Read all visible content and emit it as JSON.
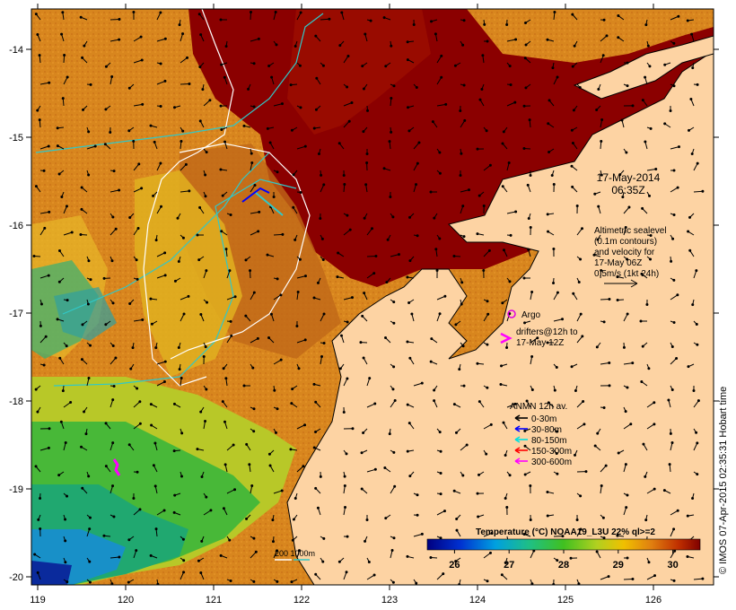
{
  "map": {
    "x_ticks": [
      "119",
      "120",
      "121",
      "122",
      "123",
      "124",
      "125",
      "126"
    ],
    "y_ticks": [
      "-14",
      "-15",
      "-16",
      "-17",
      "-18",
      "-19",
      "-20"
    ],
    "timestamp": [
      "17-May-2014",
      "06:35Z"
    ],
    "altimetry_note": [
      "Altimetric sealevel",
      "(0.1m contours)",
      "and velocity for",
      "17-May 06Z",
      "0.5m/s (1kt 24h)"
    ],
    "argo_label": "Argo",
    "drifters_label": [
      "drifters@12h to",
      "17-May 12Z"
    ],
    "anmn_title": "ANMN 12h av.",
    "anmn_legend": [
      {
        "label": "0-30m",
        "color": "#000000"
      },
      {
        "label": "30-80m",
        "color": "#0000ff"
      },
      {
        "label": "80-150m",
        "color": "#00e0e0"
      },
      {
        "label": "150-300m",
        "color": "#ff0000"
      },
      {
        "label": "300-600m",
        "color": "#ff00ff"
      }
    ],
    "isobath_label": "200  1000m",
    "colorbar_title": "Temperature (°C) NOAA19_L3U 22% ql>=2",
    "colorbar_ticks": [
      "26",
      "27",
      "28",
      "29",
      "30"
    ],
    "colorbar_range": [
      25.5,
      30.5
    ],
    "credit": "© IMOS 07-Apr-2015 02:35:31 Hobart time",
    "colors": {
      "land": "#fdd3a3",
      "warm": "#8b0000",
      "mid": "#d4851a",
      "cool": "#2ea84a",
      "cold": "#0a1a8c"
    }
  }
}
